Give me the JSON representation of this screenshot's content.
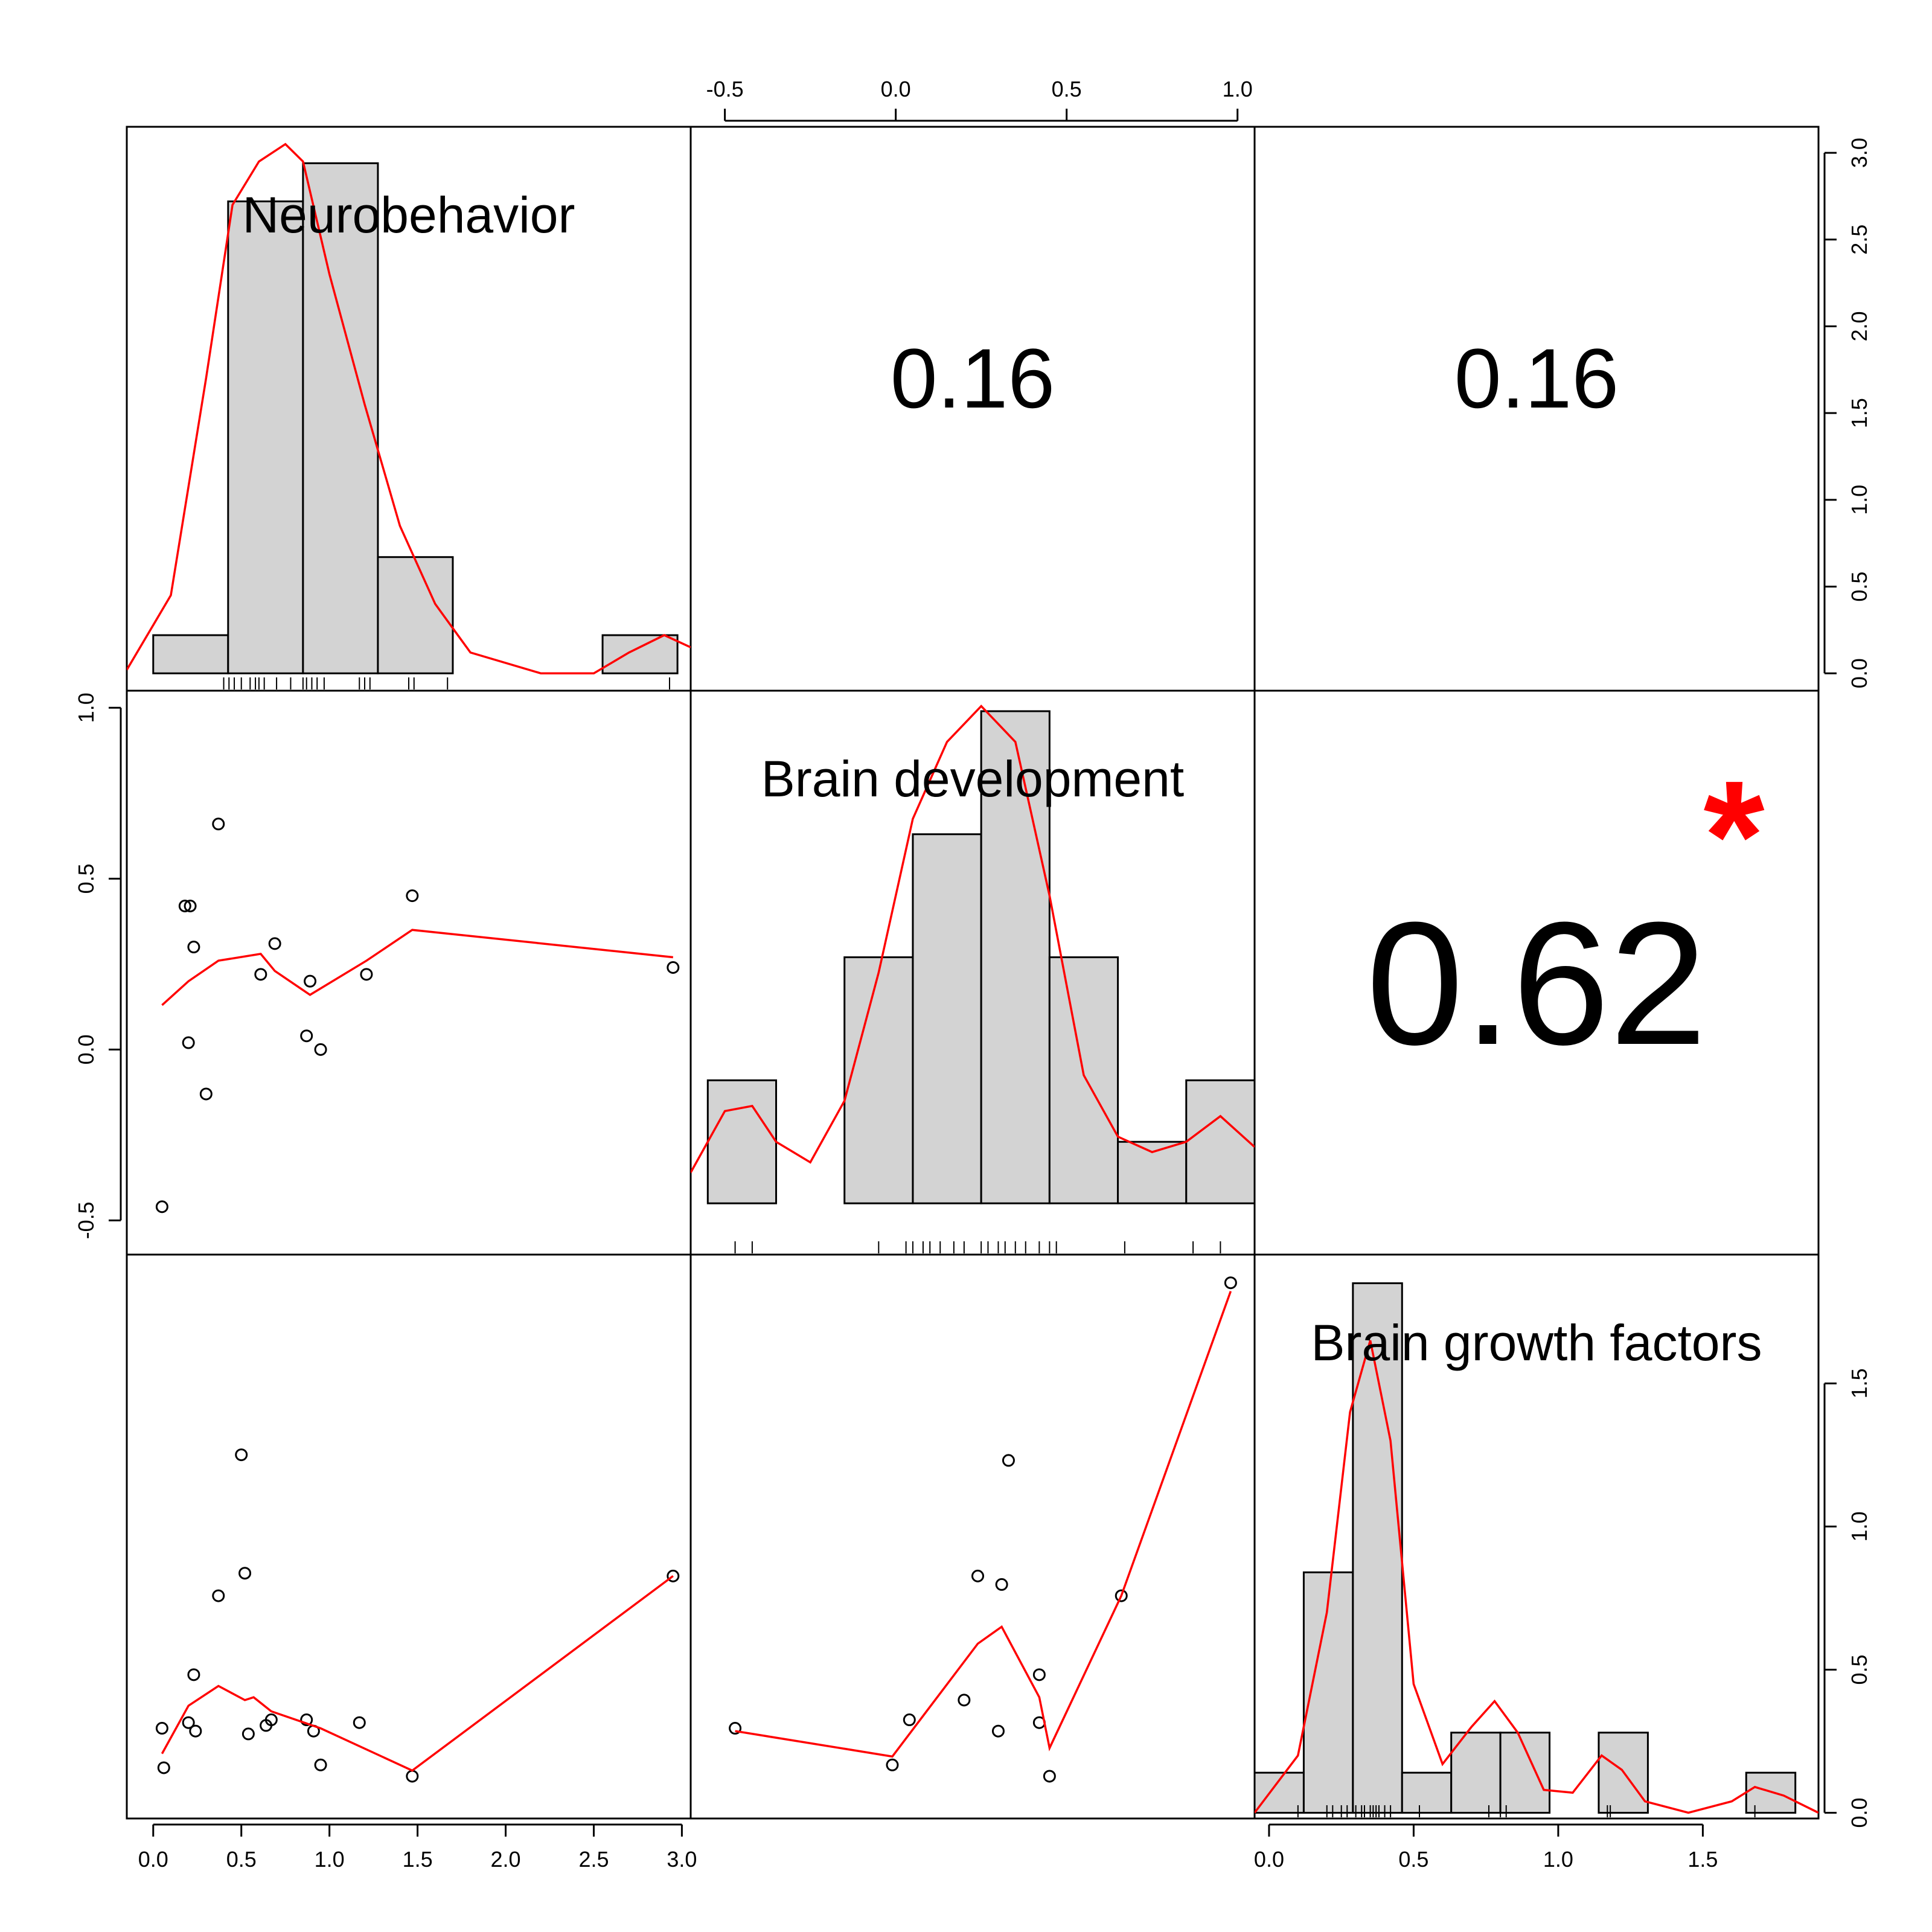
{
  "chart_data": {
    "type": "scatter-matrix",
    "variables": [
      "Neurobehavior",
      "Brain development",
      "Brain growth factors"
    ],
    "colors": {
      "fit": "#ff0000",
      "bar_fill": "#d3d3d3",
      "stroke": "#000000",
      "star": "#ff0000"
    },
    "correlations": [
      {
        "row": 0,
        "col": 1,
        "value": "0.16",
        "significant": false,
        "size": "normal"
      },
      {
        "row": 0,
        "col": 2,
        "value": "0.16",
        "significant": false,
        "size": "normal"
      },
      {
        "row": 1,
        "col": 2,
        "value": "0.62",
        "significant": true,
        "star": "*",
        "size": "large"
      }
    ],
    "axis_ticks": {
      "top": [
        "-0.5",
        "0.0",
        "0.5",
        "1.0"
      ],
      "right_row1": [
        "0.0",
        "0.5",
        "1.0",
        "1.5",
        "2.0",
        "2.5",
        "3.0"
      ],
      "left_row2": [
        "-0.5",
        "0.0",
        "0.5",
        "1.0"
      ],
      "right_row3": [
        "0.0",
        "0.5",
        "1.0",
        "1.5"
      ],
      "bottom_col1": [
        "0.0",
        "0.5",
        "1.0",
        "1.5",
        "2.0",
        "2.5",
        "3.0"
      ],
      "bottom_col3": [
        "0.0",
        "0.5",
        "1.0",
        "1.5"
      ]
    },
    "histograms": [
      {
        "variable": "Neurobehavior",
        "xlim": [
          -0.15,
          3.05
        ],
        "ylim": [
          -0.1,
          3.15
        ],
        "bins": [
          {
            "x0": 0.0,
            "x1": 0.425,
            "density": 0.22
          },
          {
            "x0": 0.425,
            "x1": 0.85,
            "density": 2.72
          },
          {
            "x0": 0.85,
            "x1": 1.275,
            "density": 2.94
          },
          {
            "x0": 1.275,
            "x1": 1.7,
            "density": 0.67
          },
          {
            "x0": 1.7,
            "x1": 2.55,
            "density": 0.0
          },
          {
            "x0": 2.55,
            "x1": 2.975,
            "density": 0.22
          }
        ],
        "density_curve": [
          [
            -0.15,
            0.02
          ],
          [
            0.1,
            0.45
          ],
          [
            0.3,
            1.7
          ],
          [
            0.45,
            2.7
          ],
          [
            0.6,
            2.95
          ],
          [
            0.75,
            3.05
          ],
          [
            0.85,
            2.95
          ],
          [
            1.0,
            2.3
          ],
          [
            1.2,
            1.55
          ],
          [
            1.4,
            0.85
          ],
          [
            1.6,
            0.4
          ],
          [
            1.8,
            0.12
          ],
          [
            2.2,
            0.0
          ],
          [
            2.5,
            0.0
          ],
          [
            2.7,
            0.12
          ],
          [
            2.9,
            0.22
          ],
          [
            3.05,
            0.15
          ]
        ],
        "rug": [
          0.4,
          0.43,
          0.46,
          0.5,
          0.55,
          0.58,
          0.6,
          0.63,
          0.7,
          0.78,
          0.85,
          0.87,
          0.9,
          0.93,
          0.97,
          1.17,
          1.2,
          1.23,
          1.45,
          1.48,
          1.67,
          2.93
        ]
      },
      {
        "variable": "Brain development",
        "xlim": [
          -0.6,
          1.05
        ],
        "ylim": [
          -0.1,
          1.0
        ],
        "bins": [
          {
            "x0": -0.55,
            "x1": -0.35,
            "density": 0.24
          },
          {
            "x0": -0.35,
            "x1": -0.15,
            "density": 0.0
          },
          {
            "x0": -0.15,
            "x1": 0.05,
            "density": 0.48
          },
          {
            "x0": 0.05,
            "x1": 0.25,
            "density": 0.72
          },
          {
            "x0": 0.25,
            "x1": 0.45,
            "density": 0.96
          },
          {
            "x0": 0.45,
            "x1": 0.65,
            "density": 0.48
          },
          {
            "x0": 0.65,
            "x1": 0.85,
            "density": 0.12
          },
          {
            "x0": 0.85,
            "x1": 1.05,
            "density": 0.24
          }
        ],
        "density_curve": [
          [
            -0.6,
            0.06
          ],
          [
            -0.5,
            0.18
          ],
          [
            -0.42,
            0.19
          ],
          [
            -0.35,
            0.12
          ],
          [
            -0.25,
            0.08
          ],
          [
            -0.15,
            0.2
          ],
          [
            -0.05,
            0.45
          ],
          [
            0.05,
            0.75
          ],
          [
            0.15,
            0.9
          ],
          [
            0.25,
            0.97
          ],
          [
            0.35,
            0.9
          ],
          [
            0.45,
            0.6
          ],
          [
            0.55,
            0.25
          ],
          [
            0.65,
            0.13
          ],
          [
            0.75,
            0.1
          ],
          [
            0.85,
            0.12
          ],
          [
            0.95,
            0.17
          ],
          [
            1.05,
            0.11
          ]
        ],
        "rug": [
          -0.47,
          -0.42,
          -0.05,
          0.03,
          0.05,
          0.08,
          0.1,
          0.13,
          0.17,
          0.2,
          0.25,
          0.27,
          0.3,
          0.32,
          0.35,
          0.38,
          0.42,
          0.45,
          0.47,
          0.67,
          0.87,
          0.95
        ]
      },
      {
        "variable": "Brain growth factors",
        "xlim": [
          -0.05,
          1.9
        ],
        "ylim": [
          -0.02,
          1.95
        ],
        "bins": [
          {
            "x0": -0.05,
            "x1": 0.12,
            "density": 0.14
          },
          {
            "x0": 0.12,
            "x1": 0.29,
            "density": 0.84
          },
          {
            "x0": 0.29,
            "x1": 0.46,
            "density": 1.85
          },
          {
            "x0": 0.46,
            "x1": 0.63,
            "density": 0.14
          },
          {
            "x0": 0.63,
            "x1": 0.8,
            "density": 0.28
          },
          {
            "x0": 0.8,
            "x1": 0.97,
            "density": 0.28
          },
          {
            "x0": 0.97,
            "x1": 1.14,
            "density": 0.0
          },
          {
            "x0": 1.14,
            "x1": 1.31,
            "density": 0.28
          },
          {
            "x0": 1.31,
            "x1": 1.65,
            "density": 0.0
          },
          {
            "x0": 1.65,
            "x1": 1.82,
            "density": 0.14
          }
        ],
        "density_curve": [
          [
            -0.05,
            0.0
          ],
          [
            0.1,
            0.2
          ],
          [
            0.2,
            0.7
          ],
          [
            0.28,
            1.4
          ],
          [
            0.35,
            1.65
          ],
          [
            0.42,
            1.3
          ],
          [
            0.5,
            0.45
          ],
          [
            0.6,
            0.17
          ],
          [
            0.7,
            0.3
          ],
          [
            0.78,
            0.39
          ],
          [
            0.86,
            0.28
          ],
          [
            0.95,
            0.08
          ],
          [
            1.05,
            0.07
          ],
          [
            1.15,
            0.2
          ],
          [
            1.22,
            0.15
          ],
          [
            1.3,
            0.04
          ],
          [
            1.45,
            0.0
          ],
          [
            1.6,
            0.04
          ],
          [
            1.68,
            0.09
          ],
          [
            1.78,
            0.06
          ],
          [
            1.9,
            0.0
          ]
        ],
        "rug": [
          0.1,
          0.2,
          0.22,
          0.25,
          0.27,
          0.3,
          0.32,
          0.33,
          0.35,
          0.36,
          0.37,
          0.38,
          0.4,
          0.42,
          0.52,
          0.76,
          0.8,
          0.82,
          1.17,
          1.18,
          1.68
        ]
      }
    ],
    "scatter_panels": [
      {
        "row": 1,
        "col": 0,
        "xvar": "Neurobehavior",
        "yvar": "Brain development",
        "xlim": [
          -0.15,
          3.05
        ],
        "ylim": [
          -0.6,
          1.05
        ],
        "points": [
          [
            0.05,
            -0.46
          ],
          [
            0.18,
            0.42
          ],
          [
            0.2,
            0.02
          ],
          [
            0.21,
            0.42
          ],
          [
            0.23,
            0.3
          ],
          [
            0.3,
            -0.13
          ],
          [
            0.37,
            0.66
          ],
          [
            0.61,
            0.22
          ],
          [
            0.69,
            0.31
          ],
          [
            0.87,
            0.04
          ],
          [
            0.89,
            0.2
          ],
          [
            0.95,
            0.0
          ],
          [
            1.21,
            0.22
          ],
          [
            1.47,
            0.45
          ],
          [
            2.95,
            0.24
          ]
        ],
        "fit": [
          [
            0.05,
            0.13
          ],
          [
            0.2,
            0.2
          ],
          [
            0.37,
            0.26
          ],
          [
            0.61,
            0.28
          ],
          [
            0.69,
            0.23
          ],
          [
            0.89,
            0.16
          ],
          [
            1.21,
            0.26
          ],
          [
            1.47,
            0.35
          ],
          [
            2.95,
            0.27
          ]
        ]
      },
      {
        "row": 2,
        "col": 0,
        "xvar": "Neurobehavior",
        "yvar": "Brain growth factors",
        "xlim": [
          -0.15,
          3.05
        ],
        "ylim": [
          -0.05,
          1.95
        ],
        "points": [
          [
            0.05,
            0.27
          ],
          [
            0.06,
            0.13
          ],
          [
            0.2,
            0.29
          ],
          [
            0.23,
            0.46
          ],
          [
            0.24,
            0.26
          ],
          [
            0.37,
            0.74
          ],
          [
            0.5,
            1.24
          ],
          [
            0.52,
            0.82
          ],
          [
            0.54,
            0.25
          ],
          [
            0.64,
            0.28
          ],
          [
            0.67,
            0.3
          ],
          [
            0.87,
            0.3
          ],
          [
            0.91,
            0.26
          ],
          [
            0.95,
            0.14
          ],
          [
            1.17,
            0.29
          ],
          [
            1.47,
            0.1
          ],
          [
            2.95,
            0.81
          ]
        ],
        "fit": [
          [
            0.05,
            0.18
          ],
          [
            0.2,
            0.35
          ],
          [
            0.37,
            0.42
          ],
          [
            0.52,
            0.37
          ],
          [
            0.57,
            0.38
          ],
          [
            0.67,
            0.33
          ],
          [
            0.95,
            0.27
          ],
          [
            1.47,
            0.12
          ],
          [
            2.95,
            0.81
          ]
        ]
      },
      {
        "row": 2,
        "col": 1,
        "xvar": "Brain development",
        "yvar": "Brain growth factors",
        "xlim": [
          -0.6,
          1.05
        ],
        "ylim": [
          -0.05,
          1.95
        ],
        "points": [
          [
            -0.47,
            0.27
          ],
          [
            -0.01,
            0.14
          ],
          [
            0.04,
            0.3
          ],
          [
            0.2,
            0.37
          ],
          [
            0.24,
            0.81
          ],
          [
            0.3,
            0.26
          ],
          [
            0.31,
            0.78
          ],
          [
            0.33,
            1.22
          ],
          [
            0.42,
            0.29
          ],
          [
            0.42,
            0.46
          ],
          [
            0.45,
            0.1
          ],
          [
            0.66,
            0.74
          ],
          [
            0.98,
            1.85
          ]
        ],
        "fit": [
          [
            -0.47,
            0.26
          ],
          [
            -0.01,
            0.17
          ],
          [
            0.24,
            0.57
          ],
          [
            0.31,
            0.63
          ],
          [
            0.42,
            0.38
          ],
          [
            0.45,
            0.2
          ],
          [
            0.66,
            0.74
          ],
          [
            0.98,
            1.82
          ]
        ]
      }
    ]
  }
}
